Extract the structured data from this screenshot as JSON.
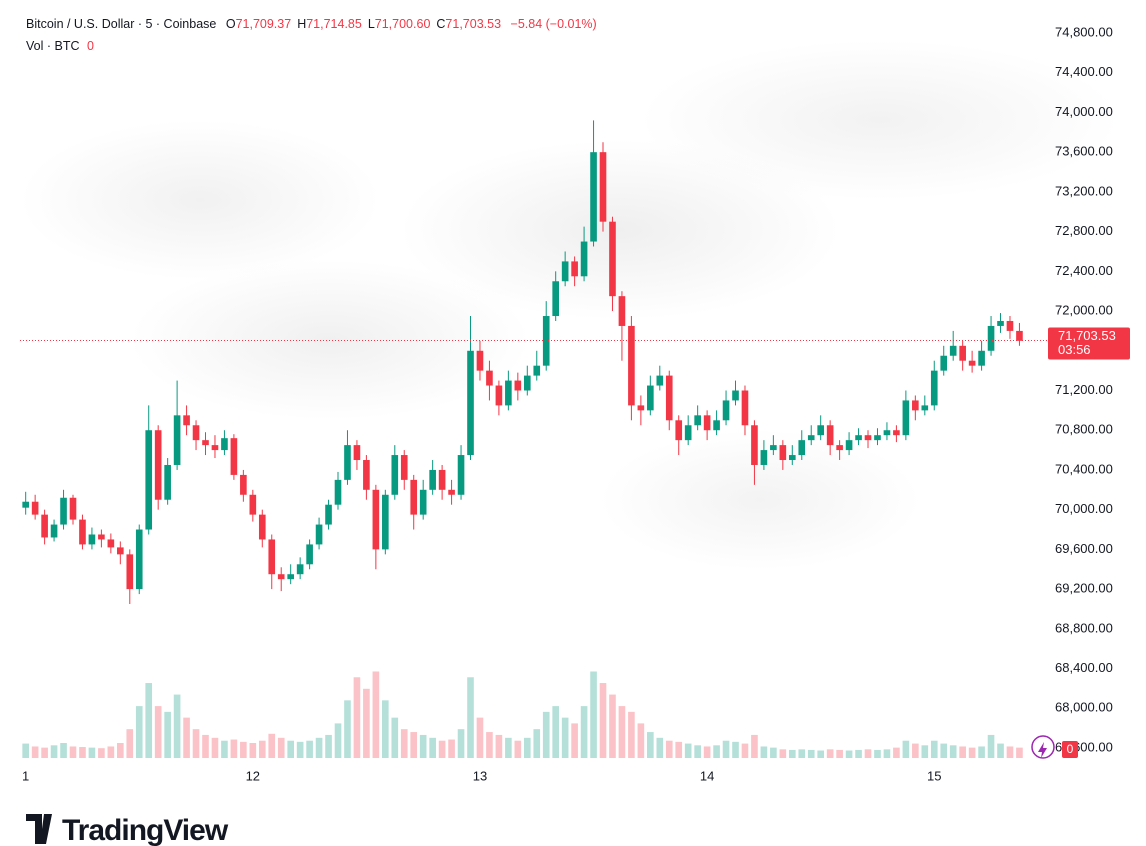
{
  "chart_data": {
    "type": "candlestick",
    "title": "Bitcoin / U.S. Dollar · 5 · Coinbase",
    "ohlc_legend": [
      {
        "key": "O",
        "value": 71709.37,
        "label": "71,709.37"
      },
      {
        "key": "H",
        "value": 71714.85,
        "label": "71,714.85"
      },
      {
        "key": "L",
        "value": 71700.6,
        "label": "71,700.60"
      },
      {
        "key": "C",
        "value": 71703.53,
        "label": "71,703.53"
      }
    ],
    "change_label": "−5.84 (−0.01%)",
    "volume_title": "Vol · BTC",
    "volume_last": 0,
    "last_price": {
      "value": 71703.53,
      "label": "71,703.53"
    },
    "countdown": "03:56",
    "logo": "TradingView",
    "up_color": "#089981",
    "down_color": "#f23645",
    "grid": false,
    "xlim": [
      -0.6,
      107.7
    ],
    "xticks": [
      {
        "value": 0,
        "label": "1"
      },
      {
        "value": 24,
        "label": "12"
      },
      {
        "value": 48,
        "label": "13"
      },
      {
        "value": 72,
        "label": "14"
      },
      {
        "value": 96,
        "label": "15"
      }
    ],
    "ylim": [
      67600,
      74800
    ],
    "yticks": [
      {
        "value": 67600,
        "label": "67,600.00"
      },
      {
        "value": 68000,
        "label": "68,000.00"
      },
      {
        "value": 68400,
        "label": "68,400.00"
      },
      {
        "value": 68800,
        "label": "68,800.00"
      },
      {
        "value": 69200,
        "label": "69,200.00"
      },
      {
        "value": 69600,
        "label": "69,600.00"
      },
      {
        "value": 70000,
        "label": "70,000.00"
      },
      {
        "value": 70400,
        "label": "70,400.00"
      },
      {
        "value": 70800,
        "label": "70,800.00"
      },
      {
        "value": 71200,
        "label": "71,200.00"
      },
      {
        "value": 71600,
        "label": "71,600.00"
      },
      {
        "value": 72000,
        "label": "72,000.00"
      },
      {
        "value": 72400,
        "label": "72,400.00"
      },
      {
        "value": 72800,
        "label": "72,800.00"
      },
      {
        "value": 73200,
        "label": "73,200.00"
      },
      {
        "value": 73600,
        "label": "73,600.00"
      },
      {
        "value": 74000,
        "label": "74,000.00"
      },
      {
        "value": 74400,
        "label": "74,400.00"
      },
      {
        "value": 74800,
        "label": "74,800.00"
      }
    ],
    "volume_lim": [
      0,
      3000
    ],
    "x": [
      0,
      1,
      2,
      3,
      4,
      5,
      6,
      7,
      8,
      9,
      10,
      11,
      12,
      13,
      14,
      15,
      16,
      17,
      18,
      19,
      20,
      21,
      22,
      23,
      24,
      25,
      26,
      27,
      28,
      29,
      30,
      31,
      32,
      33,
      34,
      35,
      36,
      37,
      38,
      39,
      40,
      41,
      42,
      43,
      44,
      45,
      46,
      47,
      48,
      49,
      50,
      51,
      52,
      53,
      54,
      55,
      56,
      57,
      58,
      59,
      60,
      61,
      62,
      63,
      64,
      65,
      66,
      67,
      68,
      69,
      70,
      71,
      72,
      73,
      74,
      75,
      76,
      77,
      78,
      79,
      80,
      81,
      82,
      83,
      84,
      85,
      86,
      87,
      88,
      89,
      90,
      91,
      92,
      93,
      94,
      95,
      96,
      97,
      98,
      99,
      100,
      101,
      102,
      103,
      104,
      105
    ],
    "open": [
      70020,
      70080,
      69950,
      69720,
      69850,
      70120,
      69900,
      69650,
      69750,
      69700,
      69620,
      69550,
      69200,
      69800,
      70800,
      70100,
      70450,
      70950,
      70850,
      70700,
      70650,
      70600,
      70720,
      70350,
      70150,
      69950,
      69700,
      69350,
      69300,
      69350,
      69450,
      69650,
      69850,
      70050,
      70300,
      70650,
      70500,
      70200,
      69600,
      70150,
      70550,
      70300,
      69950,
      70200,
      70400,
      70200,
      70150,
      70550,
      71600,
      71400,
      71250,
      71050,
      71300,
      71200,
      71350,
      71450,
      71950,
      72300,
      72500,
      72350,
      72700,
      73600,
      72900,
      72150,
      71850,
      71050,
      71000,
      71250,
      71350,
      70900,
      70700,
      70850,
      70950,
      70800,
      70900,
      71100,
      71200,
      70850,
      70450,
      70600,
      70650,
      70500,
      70550,
      70700,
      70750,
      70850,
      70650,
      70600,
      70700,
      70750,
      70700,
      70750,
      70800,
      70750,
      71100,
      71000,
      71050,
      71400,
      71550,
      71650,
      71500,
      71450,
      71600,
      71850,
      71900,
      71800
    ],
    "high": [
      70180,
      70150,
      70000,
      69900,
      70200,
      70150,
      69950,
      69820,
      69800,
      69760,
      69680,
      69600,
      69850,
      71050,
      70850,
      70520,
      71300,
      71050,
      70900,
      70780,
      70750,
      70800,
      70760,
      70400,
      70200,
      70000,
      69750,
      69420,
      69450,
      69520,
      69700,
      69920,
      70100,
      70380,
      70800,
      70700,
      70550,
      70250,
      70200,
      70650,
      70600,
      70350,
      70300,
      70500,
      70450,
      70300,
      70650,
      71950,
      71700,
      71500,
      71300,
      71400,
      71380,
      71450,
      71600,
      72100,
      72400,
      72600,
      72550,
      72850,
      73920,
      73700,
      72950,
      72200,
      71950,
      71150,
      71350,
      71450,
      71400,
      70950,
      70950,
      71050,
      71000,
      71000,
      71200,
      71300,
      71250,
      70900,
      70700,
      70750,
      70700,
      70650,
      70800,
      70850,
      70950,
      70900,
      70700,
      70780,
      70820,
      70800,
      70820,
      70880,
      70850,
      71200,
      71150,
      71150,
      71500,
      71650,
      71800,
      71700,
      71600,
      71700,
      71950,
      71980,
      71950,
      71880
    ],
    "low": [
      69950,
      69900,
      69650,
      69680,
      69800,
      69850,
      69600,
      69600,
      69620,
      69560,
      69450,
      69050,
      69150,
      69750,
      70000,
      70050,
      70400,
      70750,
      70600,
      70550,
      70520,
      70550,
      70300,
      70080,
      69880,
      69620,
      69200,
      69180,
      69250,
      69300,
      69400,
      69600,
      69800,
      70000,
      70250,
      70400,
      70100,
      69400,
      69550,
      70100,
      70200,
      69800,
      69900,
      70150,
      70100,
      70050,
      70100,
      70500,
      71300,
      71100,
      70950,
      71000,
      71100,
      71150,
      71300,
      71400,
      71900,
      72250,
      72250,
      72300,
      72650,
      72800,
      72000,
      71500,
      70900,
      70850,
      70950,
      71200,
      70800,
      70550,
      70650,
      70800,
      70700,
      70750,
      70850,
      71050,
      70750,
      70250,
      70400,
      70550,
      70400,
      70450,
      70500,
      70650,
      70700,
      70550,
      70500,
      70550,
      70650,
      70620,
      70650,
      70700,
      70680,
      70700,
      70900,
      70950,
      71000,
      71350,
      71500,
      71400,
      71380,
      71400,
      71550,
      71780,
      71720,
      71650
    ],
    "close": [
      70080,
      69950,
      69720,
      69850,
      70120,
      69900,
      69650,
      69750,
      69700,
      69620,
      69550,
      69200,
      69800,
      70800,
      70100,
      70450,
      70950,
      70850,
      70700,
      70650,
      70600,
      70720,
      70350,
      70150,
      69950,
      69700,
      69350,
      69300,
      69350,
      69450,
      69650,
      69850,
      70050,
      70300,
      70650,
      70500,
      70200,
      69600,
      70150,
      70550,
      70300,
      69950,
      70200,
      70400,
      70200,
      70150,
      70550,
      71600,
      71400,
      71250,
      71050,
      71300,
      71200,
      71350,
      71450,
      71950,
      72300,
      72500,
      72350,
      72700,
      73600,
      72900,
      72150,
      71850,
      71050,
      71000,
      71250,
      71350,
      70900,
      70700,
      70850,
      70950,
      70800,
      70900,
      71100,
      71200,
      70850,
      70450,
      70600,
      70650,
      70500,
      70550,
      70700,
      70750,
      70850,
      70650,
      70600,
      70700,
      70750,
      70700,
      70750,
      70800,
      70750,
      71100,
      71000,
      71050,
      71400,
      71550,
      71650,
      71500,
      71450,
      71600,
      71850,
      71900,
      71800,
      71700
    ],
    "volume": [
      250,
      200,
      180,
      220,
      260,
      200,
      190,
      180,
      170,
      200,
      260,
      500,
      900,
      1300,
      900,
      800,
      1100,
      700,
      500,
      400,
      350,
      300,
      320,
      280,
      260,
      300,
      420,
      350,
      300,
      280,
      300,
      350,
      400,
      600,
      1000,
      1400,
      1200,
      1500,
      1000,
      700,
      500,
      450,
      400,
      350,
      300,
      320,
      500,
      1400,
      700,
      450,
      400,
      350,
      300,
      350,
      500,
      800,
      900,
      700,
      600,
      900,
      1500,
      1300,
      1100,
      900,
      800,
      600,
      450,
      350,
      300,
      280,
      250,
      220,
      200,
      220,
      300,
      280,
      250,
      400,
      200,
      180,
      150,
      140,
      150,
      140,
      130,
      150,
      140,
      130,
      140,
      150,
      140,
      150,
      180,
      300,
      250,
      220,
      300,
      250,
      220,
      200,
      180,
      200,
      400,
      250,
      200,
      180
    ]
  }
}
